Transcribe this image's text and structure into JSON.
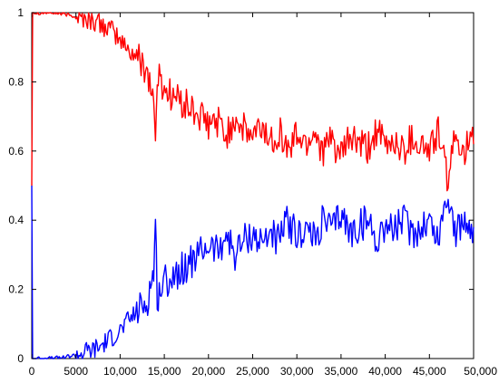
{
  "chart_data": {
    "type": "line",
    "title": "",
    "xlabel": "",
    "ylabel": "",
    "xlim": [
      0,
      50000
    ],
    "ylim": [
      0,
      1
    ],
    "grid": false,
    "legend": "none",
    "x_ticks": [
      0,
      5000,
      10000,
      15000,
      20000,
      25000,
      30000,
      35000,
      40000,
      45000,
      50000
    ],
    "x_tick_labels": [
      "0",
      "5000",
      "10,000",
      "15,000",
      "20,000",
      "25,000",
      "30,000",
      "35,000",
      "40,000",
      "45,000",
      "50,000"
    ],
    "y_ticks": [
      0,
      0.2,
      0.4,
      0.6,
      0.8,
      1
    ],
    "y_tick_labels": [
      "0",
      "0.2",
      "0.4",
      "0.6",
      "0.8",
      "1"
    ],
    "series": [
      {
        "color": "#ff0000",
        "x": [
          0,
          100,
          200,
          2500,
          5000,
          7500,
          9000,
          10000,
          11000,
          12000,
          13000,
          13800,
          14000,
          14200,
          15000,
          16000,
          17000,
          18000,
          19000,
          20000,
          21000,
          22000,
          23000,
          24000,
          25000,
          26000,
          27000,
          28000,
          29000,
          30000,
          31000,
          32000,
          33000,
          34000,
          35000,
          36000,
          37000,
          38000,
          39000,
          40000,
          41000,
          42000,
          43000,
          44000,
          45000,
          46000,
          47000,
          48000,
          49000,
          50000
        ],
        "values": [
          0.5,
          1.0,
          1.0,
          1.0,
          0.99,
          0.97,
          0.95,
          0.92,
          0.89,
          0.87,
          0.84,
          0.75,
          0.61,
          0.82,
          0.78,
          0.76,
          0.74,
          0.72,
          0.7,
          0.67,
          0.69,
          0.64,
          0.7,
          0.66,
          0.64,
          0.67,
          0.63,
          0.66,
          0.6,
          0.65,
          0.62,
          0.66,
          0.6,
          0.63,
          0.58,
          0.64,
          0.62,
          0.6,
          0.66,
          0.61,
          0.63,
          0.6,
          0.64,
          0.62,
          0.6,
          0.66,
          0.52,
          0.64,
          0.61,
          0.62
        ]
      },
      {
        "color": "#0000ff",
        "x": [
          0,
          100,
          200,
          2500,
          5000,
          7500,
          9000,
          10000,
          11000,
          12000,
          13000,
          13800,
          14000,
          14200,
          15000,
          16000,
          17000,
          18000,
          19000,
          20000,
          21000,
          22000,
          23000,
          24000,
          25000,
          26000,
          27000,
          28000,
          29000,
          30000,
          31000,
          32000,
          33000,
          34000,
          35000,
          36000,
          37000,
          38000,
          39000,
          40000,
          41000,
          42000,
          43000,
          44000,
          45000,
          46000,
          47000,
          48000,
          49000,
          50000
        ],
        "values": [
          0.5,
          0.0,
          0.0,
          0.0,
          0.01,
          0.03,
          0.06,
          0.08,
          0.11,
          0.14,
          0.16,
          0.25,
          0.39,
          0.18,
          0.22,
          0.24,
          0.26,
          0.28,
          0.3,
          0.33,
          0.31,
          0.36,
          0.3,
          0.34,
          0.36,
          0.33,
          0.37,
          0.34,
          0.4,
          0.35,
          0.38,
          0.34,
          0.4,
          0.37,
          0.42,
          0.36,
          0.38,
          0.4,
          0.34,
          0.39,
          0.37,
          0.4,
          0.36,
          0.38,
          0.4,
          0.34,
          0.48,
          0.36,
          0.39,
          0.38
        ]
      }
    ]
  }
}
